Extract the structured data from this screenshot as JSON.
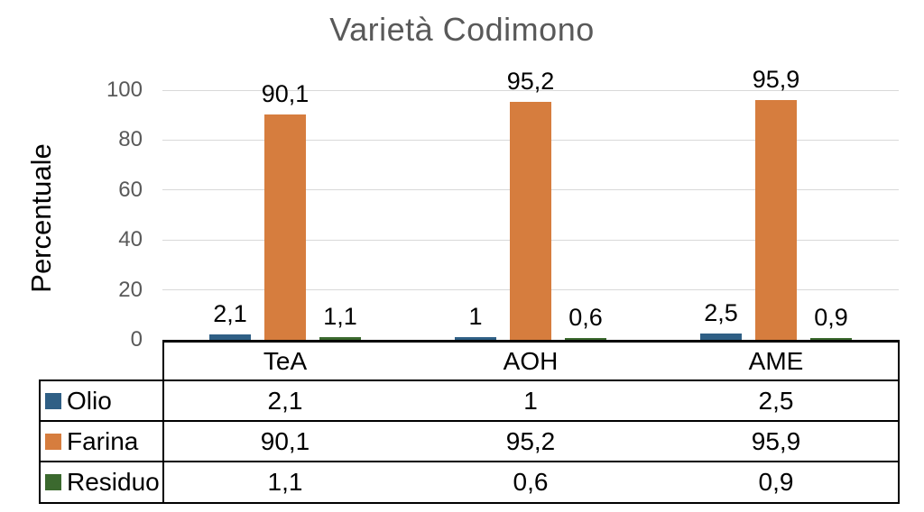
{
  "chart_data": {
    "type": "bar",
    "title": "Varietà Codimono",
    "ylabel": "Percentuale",
    "categories": [
      "TeA",
      "AOH",
      "AME"
    ],
    "series": [
      {
        "name": "Olio",
        "color": "#2F5F85",
        "values": [
          2.1,
          1,
          2.5
        ],
        "labels": [
          "2,1",
          "1",
          "2,5"
        ]
      },
      {
        "name": "Farina",
        "color": "#D67D3E",
        "values": [
          90.1,
          95.2,
          95.9
        ],
        "labels": [
          "90,1",
          "95,2",
          "95,9"
        ]
      },
      {
        "name": "Residuo",
        "color": "#3B692E",
        "values": [
          1.1,
          0.6,
          0.9
        ],
        "labels": [
          "1,1",
          "0,6",
          "0,9"
        ]
      }
    ],
    "ylim": [
      0,
      100
    ],
    "yticks": [
      0,
      20,
      40,
      60,
      80,
      100
    ],
    "ytick_labels": [
      "0",
      "20",
      "40",
      "60",
      "80",
      "100"
    ],
    "grid": true,
    "legend_position": "data-table-left",
    "data_table": {
      "row_headers": [
        "Olio",
        "Farina",
        "Residuo"
      ],
      "rows": [
        [
          "2,1",
          "1",
          "2,5"
        ],
        [
          "90,1",
          "95,2",
          "95,9"
        ],
        [
          "1,1",
          "0,6",
          "0,9"
        ]
      ]
    }
  },
  "colors": {
    "title_text": "#595959",
    "tick_text": "#595959",
    "gridline": "#d9d9d9",
    "table_border": "#000000",
    "background": "#ffffff"
  }
}
